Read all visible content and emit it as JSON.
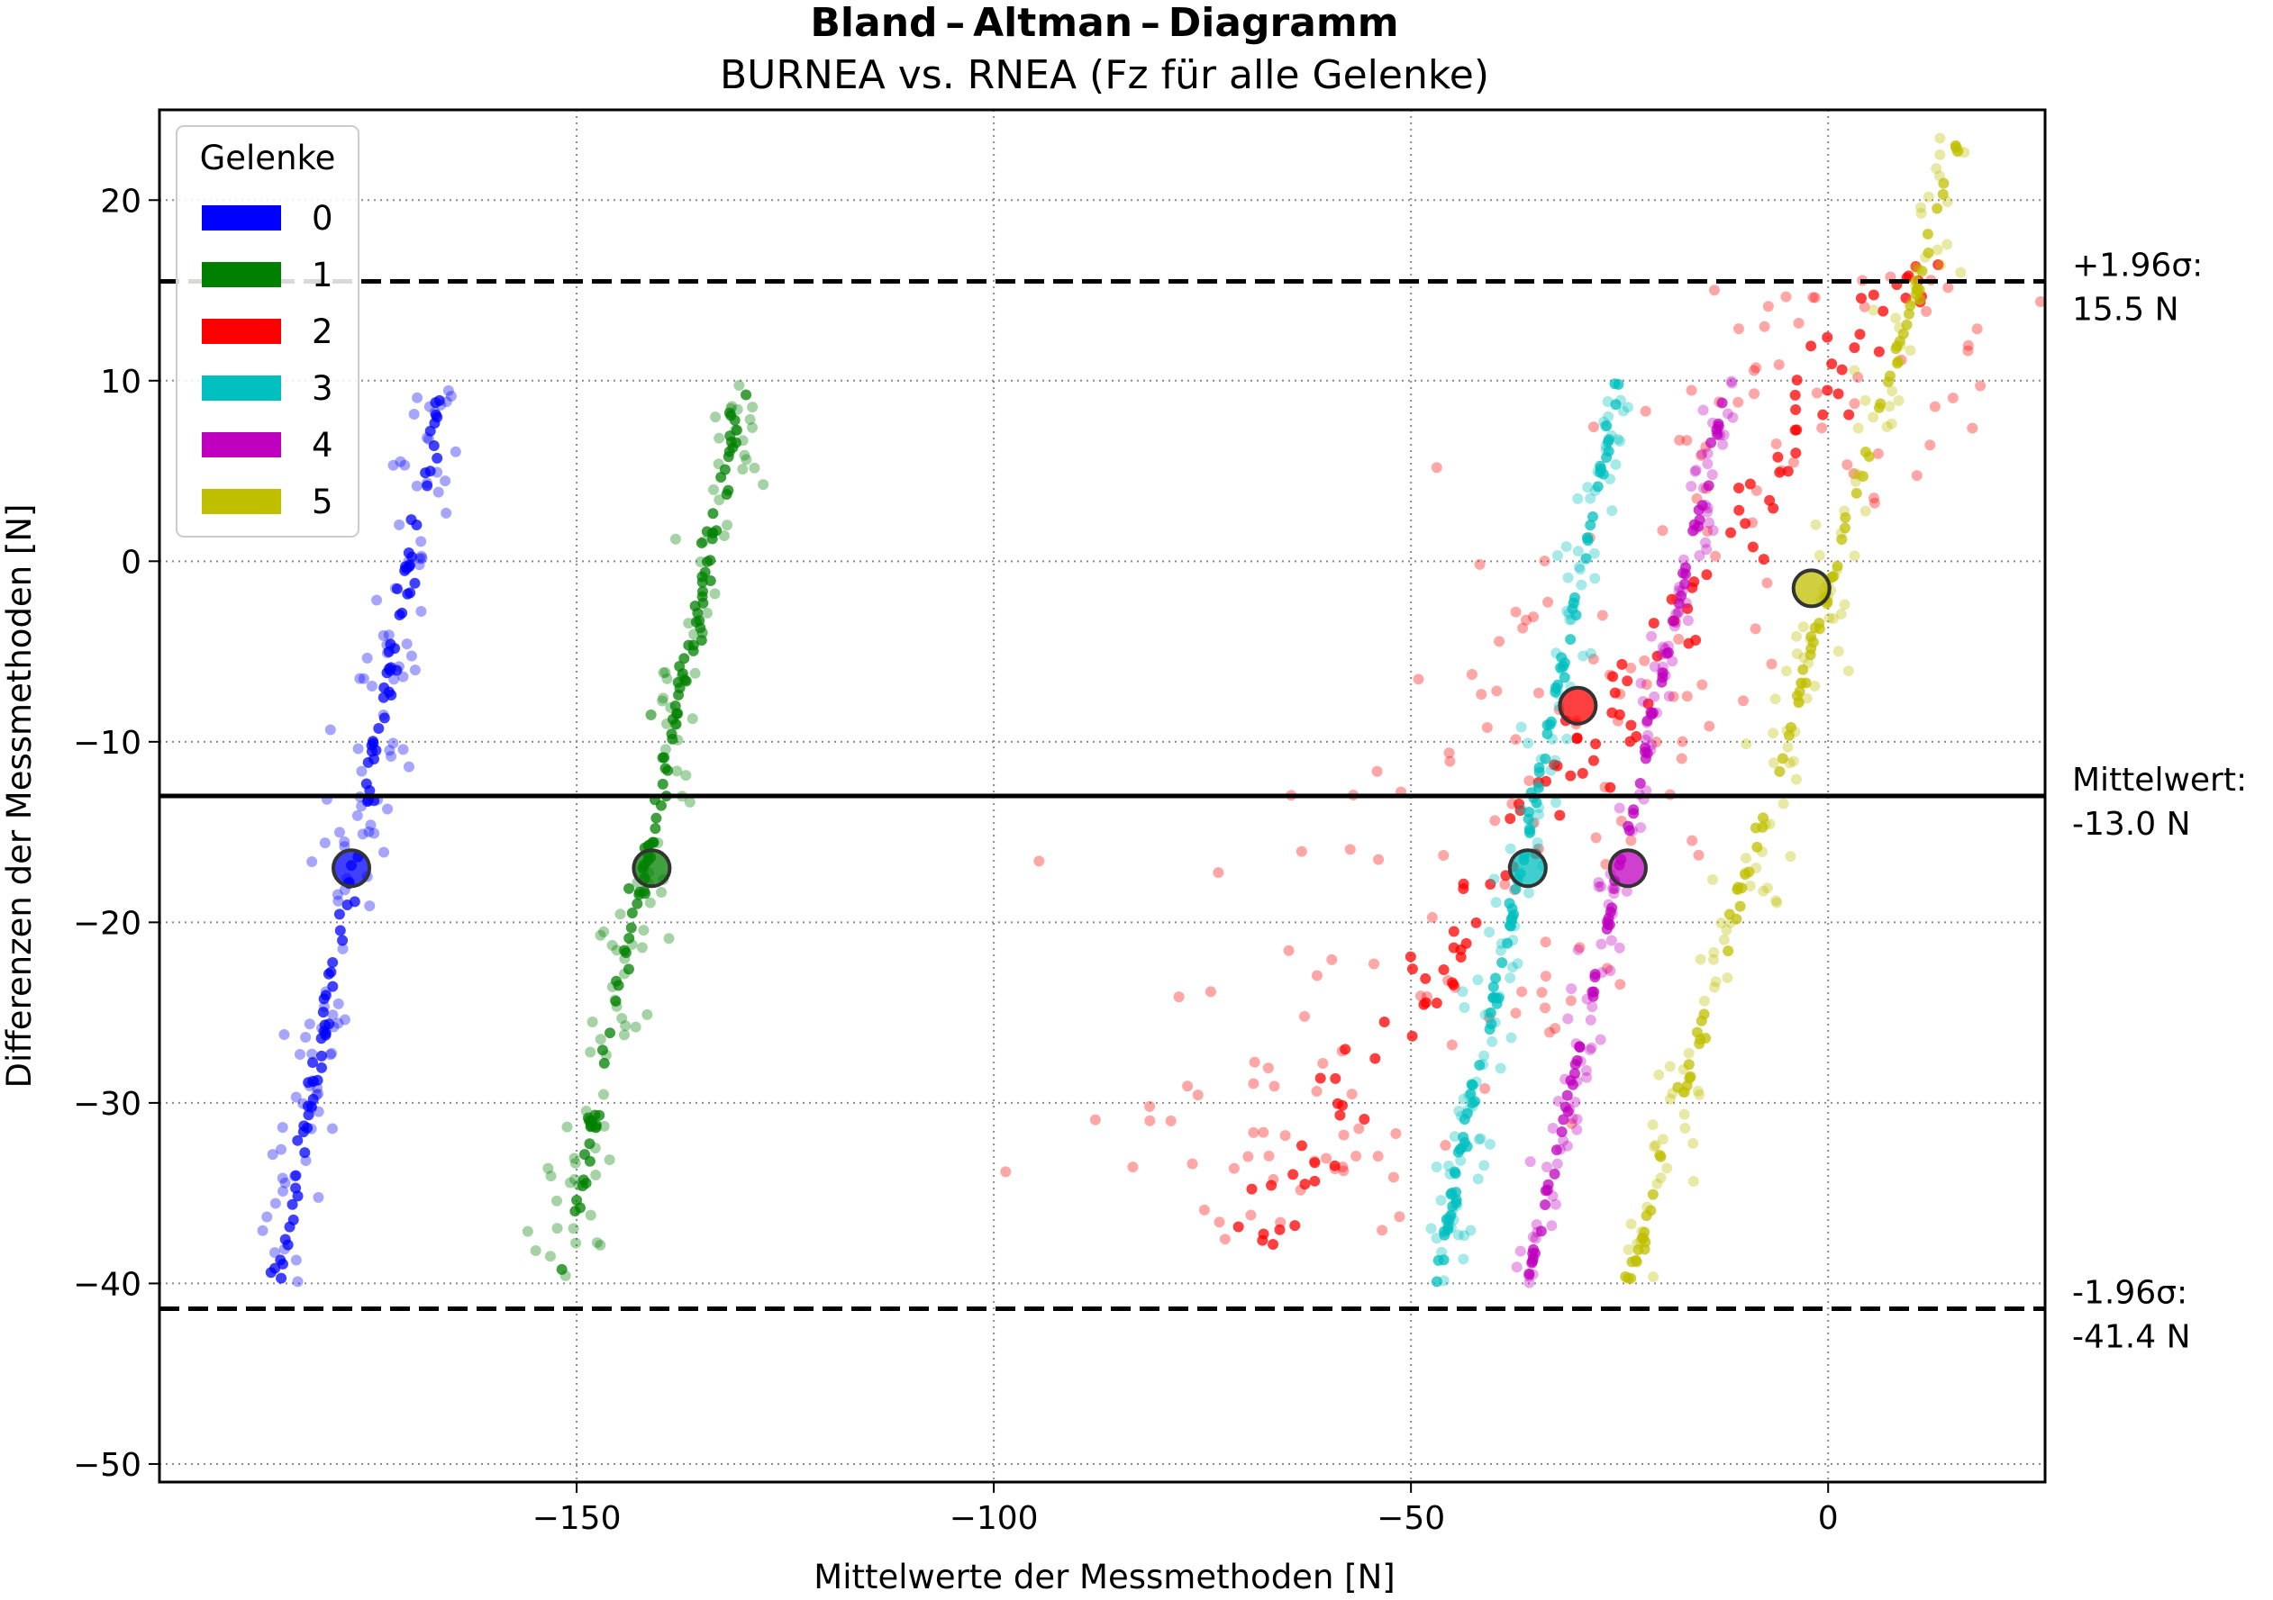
{
  "chart_data": {
    "type": "scatter",
    "title": "Bland – Altman – Diagramm",
    "subtitle": "BURNEA vs. RNEA (Fz für alle Gelenke)",
    "xlabel": "Mittelwerte der Messmethoden [N]",
    "ylabel": "Differenzen der Messmethoden [N]",
    "xlim": [
      -200,
      26
    ],
    "ylim": [
      -51,
      25
    ],
    "xticks": [
      -150,
      -100,
      -50,
      0
    ],
    "xtick_labels": [
      "−150",
      "−100",
      "−50",
      "0"
    ],
    "yticks": [
      -50,
      -40,
      -30,
      -20,
      -10,
      0,
      10,
      20
    ],
    "ytick_labels": [
      "−50",
      "−40",
      "−30",
      "−20",
      "−10",
      "0",
      "10",
      "20"
    ],
    "grid": true,
    "grid_style": "dotted",
    "legend": {
      "title": "Gelenke",
      "placement": "top-left",
      "entries": [
        "0",
        "1",
        "2",
        "3",
        "4",
        "5"
      ]
    },
    "reference_lines": [
      {
        "name": "upper",
        "y": 15.5,
        "style": "dashed",
        "label_line1": "+1.96σ:",
        "label_line2": "15.5 N"
      },
      {
        "name": "mean",
        "y": -13.0,
        "style": "solid",
        "label_line1": "Mittelwert:",
        "label_line2": "-13.0 N"
      },
      {
        "name": "lower",
        "y": -41.4,
        "style": "dashed",
        "label_line1": "-1.96σ:",
        "label_line2": "-41.4 N"
      }
    ],
    "series": [
      {
        "name": "0",
        "color": "#0000ff",
        "band": {
          "x_at_y_min": -186,
          "x_at_y_max": -166,
          "y_min": -40,
          "y_max": 10
        },
        "spread": 2.2,
        "n": 220,
        "mean_point": [
          -177,
          -17
        ]
      },
      {
        "name": "1",
        "color": "#008000",
        "band": {
          "x_at_y_min": -152,
          "x_at_y_max": -130,
          "y_min": -40,
          "y_max": 10
        },
        "spread": 2.0,
        "n": 220,
        "mean_point": [
          -141,
          -17
        ]
      },
      {
        "name": "2",
        "color": "#ff0000",
        "band": {
          "x_at_y_min": -69,
          "x_at_y_max": 10,
          "y_min": -38,
          "y_max": 17
        },
        "spread": 14,
        "n": 320,
        "mean_point": [
          -30,
          -8
        ]
      },
      {
        "name": "3",
        "color": "#00bfbf",
        "band": {
          "x_at_y_min": -47,
          "x_at_y_max": -25,
          "y_min": -40,
          "y_max": 10
        },
        "spread": 1.5,
        "n": 220,
        "mean_point": [
          -36,
          -17
        ]
      },
      {
        "name": "4",
        "color": "#bf00bf",
        "band": {
          "x_at_y_min": -36,
          "x_at_y_max": -12,
          "y_min": -40,
          "y_max": 10
        },
        "spread": 1.0,
        "n": 200,
        "mean_point": [
          -24,
          -17
        ]
      },
      {
        "name": "5",
        "color": "#bfbf00",
        "band": {
          "x_at_y_min": -24,
          "x_at_y_max": 16,
          "y_min": -40,
          "y_max": 24
        },
        "spread": 1.8,
        "n": 230,
        "mean_point": [
          -2,
          -1.5
        ]
      }
    ]
  }
}
